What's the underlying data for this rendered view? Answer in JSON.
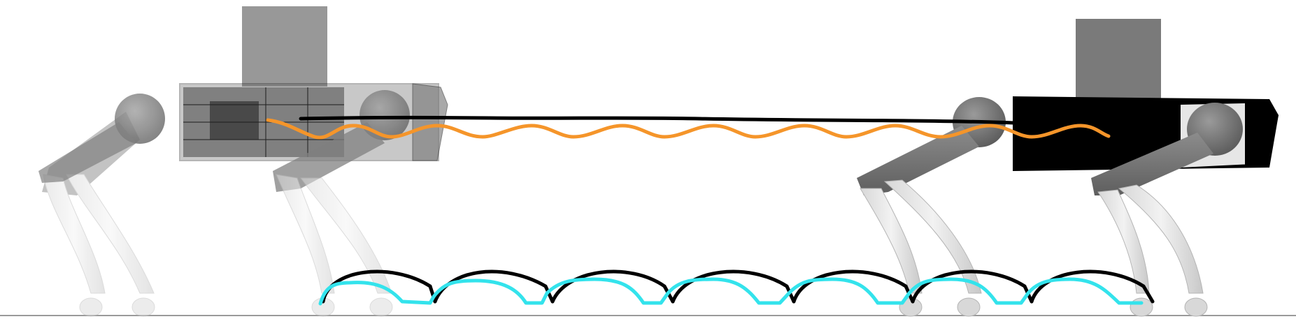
{
  "figure": {
    "colors": {
      "background": "#ffffff",
      "ground": "#9a9a9a",
      "body_trajectory_reference": "#000000",
      "body_trajectory_actual": "#f5952a",
      "foot_trajectory_reference": "#000000",
      "foot_trajectory_actual": "#33e3ec",
      "robot_start_body": "#3a3a3a",
      "robot_end_body": "#000000",
      "payload_box": "#7f7f7f"
    },
    "robots": [
      {
        "name": "start-pose",
        "style": "wireframe-translucent"
      },
      {
        "name": "end-pose",
        "style": "solid-black"
      }
    ],
    "trajectories": [
      {
        "name": "body-reference",
        "kind": "body",
        "pattern": "flat-line"
      },
      {
        "name": "body-actual",
        "kind": "body",
        "pattern": "wavy"
      },
      {
        "name": "foot-reference",
        "kind": "foot",
        "pattern": "arched-steps",
        "steps": 7
      },
      {
        "name": "foot-actual",
        "kind": "foot",
        "pattern": "arched-steps",
        "steps": 7
      }
    ]
  }
}
